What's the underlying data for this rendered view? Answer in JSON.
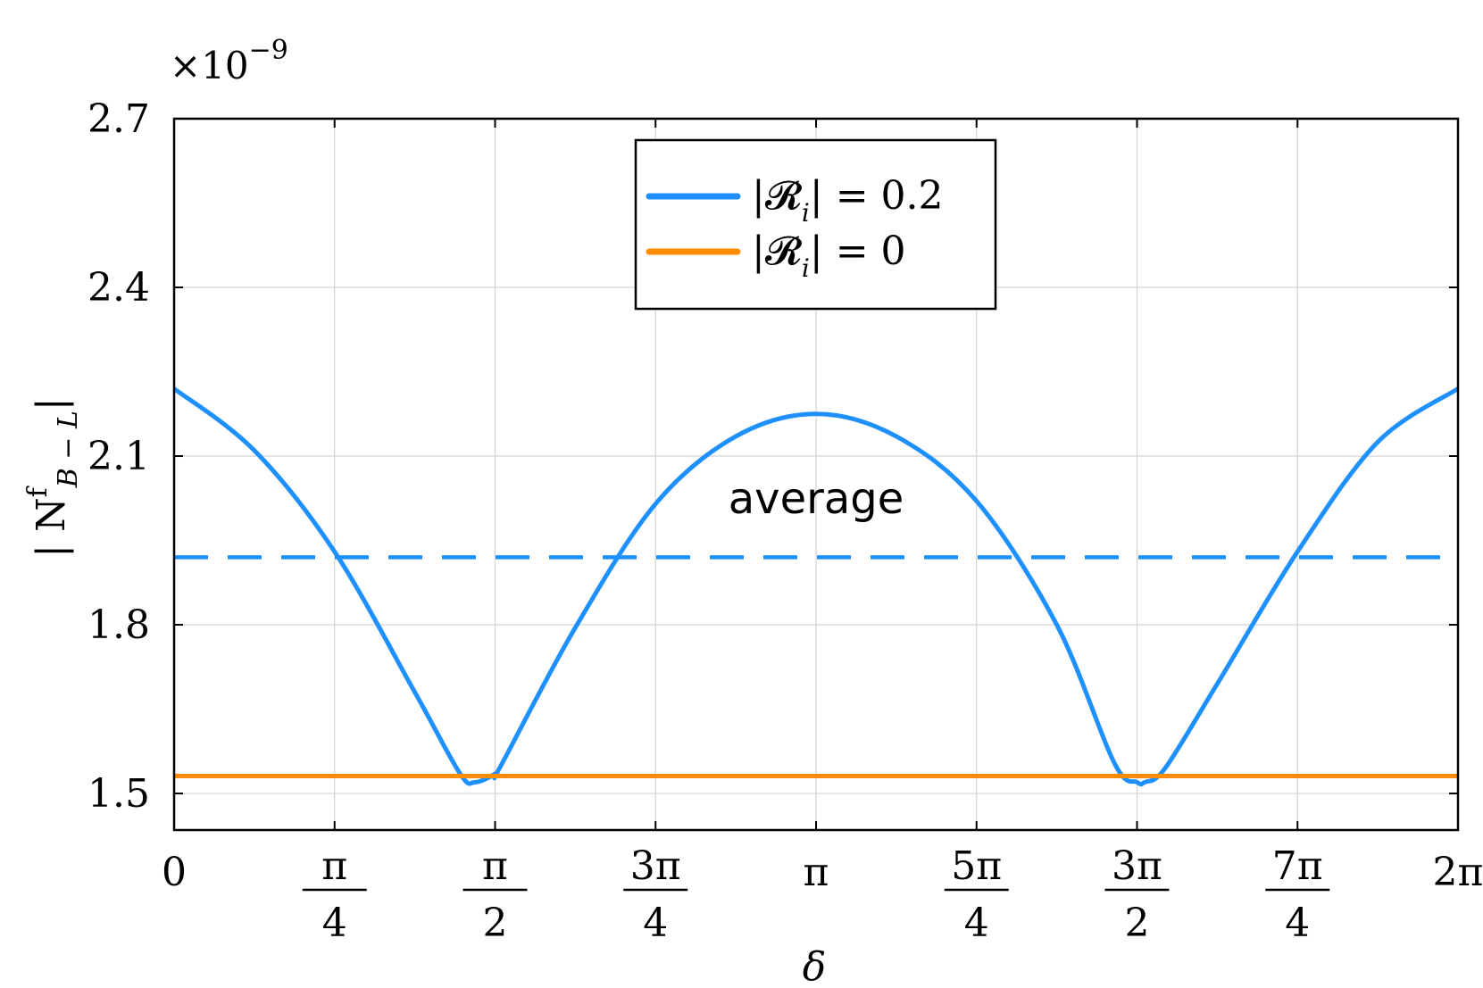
{
  "chart_data": {
    "type": "line",
    "xlabel": "δ",
    "ylabel": "| N",
    "ylabel_sup": "f",
    "ylabel_sub": "B − L",
    "ylabel_close": "|",
    "y_scale_label": "×10",
    "y_scale_exp": "−9",
    "xlim": [
      0,
      6.283185307
    ],
    "ylim": [
      1.435,
      2.7
    ],
    "grid": true,
    "legend_position": "top-center",
    "x_ticks": [
      {
        "value": 0,
        "num": "0",
        "den": ""
      },
      {
        "value": 0.785398,
        "num": "π",
        "den": "4"
      },
      {
        "value": 1.570796,
        "num": "π",
        "den": "2"
      },
      {
        "value": 2.356194,
        "num": "3π",
        "den": "4"
      },
      {
        "value": 3.141593,
        "num": "π",
        "den": ""
      },
      {
        "value": 3.926991,
        "num": "5π",
        "den": "4"
      },
      {
        "value": 4.712389,
        "num": "3π",
        "den": "2"
      },
      {
        "value": 5.497787,
        "num": "7π",
        "den": "4"
      },
      {
        "value": 6.283185,
        "num": "2π",
        "den": ""
      }
    ],
    "y_ticks": [
      {
        "value": 1.5,
        "label": "1.5"
      },
      {
        "value": 1.8,
        "label": "1.8"
      },
      {
        "value": 2.1,
        "label": "2.1"
      },
      {
        "value": 2.4,
        "label": "2.4"
      },
      {
        "value": 2.7,
        "label": "2.7"
      }
    ],
    "series": [
      {
        "name": "|𝓡ᵢ| = 0.2",
        "legend_lhs": "|𝓡",
        "legend_sub": "i",
        "legend_rhs": "|  = 0.2",
        "color": "#1e90ff",
        "x": [
          0,
          0.3927,
          0.7854,
          1.1781,
          1.4,
          1.4726,
          1.5708,
          1.6,
          1.9635,
          2.3562,
          2.7489,
          3.1416,
          3.5343,
          3.927,
          4.3197,
          4.6,
          4.7124,
          4.75,
          4.85,
          5.1051,
          5.4978,
          5.8905,
          6.2832
        ],
        "y": [
          2.22,
          2.11,
          1.93,
          1.68,
          1.535,
          1.52,
          1.535,
          1.55,
          1.795,
          2.015,
          2.135,
          2.175,
          2.135,
          2.02,
          1.8,
          1.555,
          1.52,
          1.52,
          1.545,
          1.695,
          1.93,
          2.125,
          2.22
        ]
      },
      {
        "name": "|𝓡ᵢ| = 0",
        "legend_lhs": "|𝓡",
        "legend_sub": "i",
        "legend_rhs": "|  = 0",
        "color": "#ff8c00",
        "x": [
          0,
          6.2832
        ],
        "y": [
          1.531,
          1.531
        ]
      }
    ],
    "reference_lines": [
      {
        "label": "average",
        "y": 1.92,
        "color": "#1e90ff",
        "style": "dashed"
      }
    ]
  }
}
